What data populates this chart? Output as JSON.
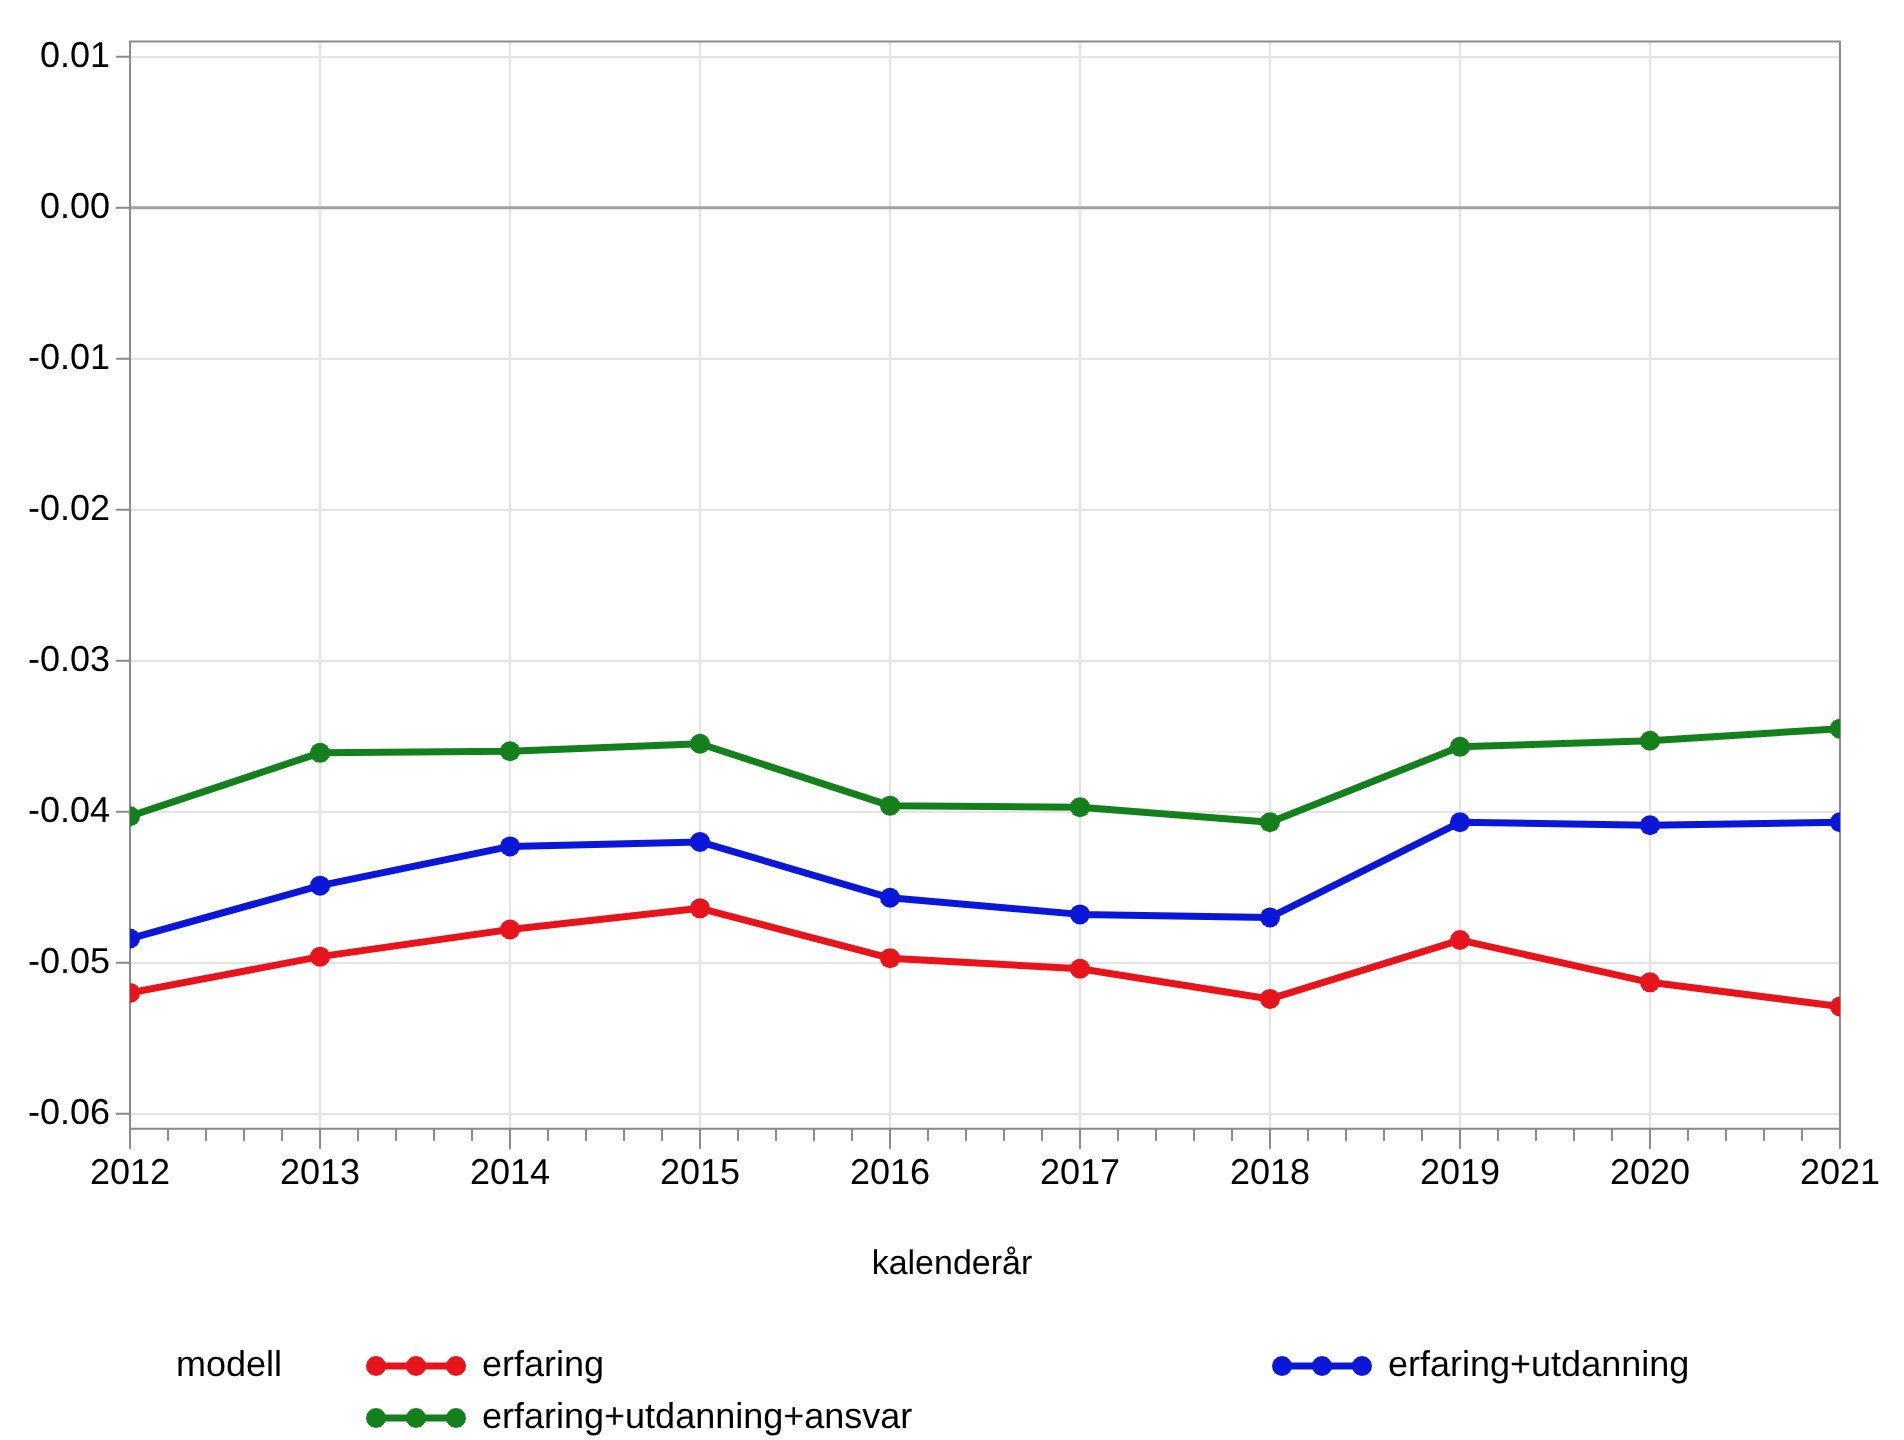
{
  "chart_data": {
    "type": "line",
    "xlabel": "kalenderår",
    "legend_title": "modell",
    "x": [
      2012,
      2013,
      2014,
      2015,
      2016,
      2017,
      2018,
      2019,
      2020,
      2021
    ],
    "series": [
      {
        "name": "erfaring",
        "color": "#e8141c",
        "values": [
          -0.052,
          -0.0496,
          -0.0478,
          -0.0464,
          -0.0497,
          -0.0504,
          -0.0524,
          -0.0485,
          -0.0513,
          -0.0529
        ]
      },
      {
        "name": "erfaring+utdanning",
        "color": "#0b17d8",
        "values": [
          -0.0484,
          -0.0449,
          -0.0423,
          -0.042,
          -0.0457,
          -0.0468,
          -0.047,
          -0.0407,
          -0.0409,
          -0.0407
        ]
      },
      {
        "name": "erfaring+utdanning+ansvar",
        "color": "#14801c",
        "values": [
          -0.0403,
          -0.0361,
          -0.036,
          -0.0355,
          -0.0396,
          -0.0397,
          -0.0407,
          -0.0357,
          -0.0353,
          -0.0345
        ]
      }
    ],
    "xlim": [
      2012,
      2021
    ],
    "xticks": [
      2012,
      {
        "value": 2012.2,
        "label": null
      },
      {
        "value": 2012.4,
        "label": null
      },
      {
        "value": 2012.6,
        "label": null
      },
      {
        "value": 2012.8,
        "label": null
      },
      2013,
      {
        "value": 2013.2,
        "label": null
      },
      {
        "value": 2013.4,
        "label": null
      },
      {
        "value": 2013.6,
        "label": null
      },
      {
        "value": 2013.8,
        "label": null
      },
      2014,
      {
        "value": 2014.2,
        "label": null
      },
      {
        "value": 2014.4,
        "label": null
      },
      {
        "value": 2014.6,
        "label": null
      },
      {
        "value": 2014.8,
        "label": null
      },
      2015,
      {
        "value": 2015.2,
        "label": null
      },
      {
        "value": 2015.4,
        "label": null
      },
      {
        "value": 2015.6,
        "label": null
      },
      {
        "value": 2015.8,
        "label": null
      },
      2016,
      {
        "value": 2016.2,
        "label": null
      },
      {
        "value": 2016.4,
        "label": null
      },
      {
        "value": 2016.6,
        "label": null
      },
      {
        "value": 2016.8,
        "label": null
      },
      2017,
      {
        "value": 2017.2,
        "label": null
      },
      {
        "value": 2017.4,
        "label": null
      },
      {
        "value": 2017.6,
        "label": null
      },
      {
        "value": 2017.8,
        "label": null
      },
      2018,
      {
        "value": 2018.2,
        "label": null
      },
      {
        "value": 2018.4,
        "label": null
      },
      {
        "value": 2018.6,
        "label": null
      },
      {
        "value": 2018.8,
        "label": null
      },
      2019,
      {
        "value": 2019.2,
        "label": null
      },
      {
        "value": 2019.4,
        "label": null
      },
      {
        "value": 2019.6,
        "label": null
      },
      {
        "value": 2019.8,
        "label": null
      },
      2020,
      {
        "value": 2020.2,
        "label": null
      },
      {
        "value": 2020.4,
        "label": null
      },
      {
        "value": 2020.6,
        "label": null
      },
      {
        "value": 2020.8,
        "label": null
      },
      2021
    ],
    "ylim": [
      -0.061,
      0.011
    ],
    "yticks": [
      0.01,
      {
        "value": 0,
        "label": "0.00"
      },
      -0.01,
      -0.02,
      -0.03,
      -0.04,
      -0.05,
      -0.06
    ],
    "ref_lines": [
      {
        "axis": "y",
        "value": 0,
        "color": "#a0a0a0"
      }
    ],
    "grid": true,
    "legend": "bottom",
    "marker": "circle",
    "line_style": "solid"
  }
}
